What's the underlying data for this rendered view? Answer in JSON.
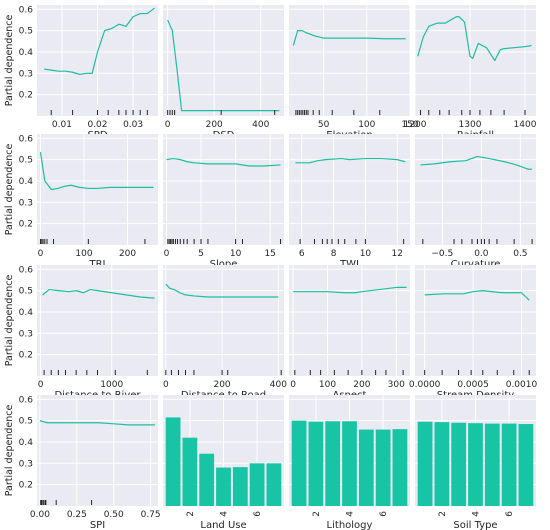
{
  "figure": {
    "ylabel": "Partial dependence",
    "colors": {
      "line": "#1dbfa0",
      "bar": "#17c5a5",
      "panel_bg": "#e9eaf2",
      "grid": "#ffffff",
      "rug": "#222222",
      "text": "#262626"
    }
  },
  "chart_data": [
    {
      "type": "line",
      "xlabel": "SPD",
      "ylabel": "Partial dependence",
      "xlim": [
        0.003,
        0.037
      ],
      "ylim": [
        0.1,
        0.62
      ],
      "xticks": [
        0.01,
        0.02,
        0.03
      ],
      "xtick_labels": [
        "0.01",
        "0.02",
        "0.03"
      ],
      "yticks": [
        0.2,
        0.3,
        0.4,
        0.5,
        0.6
      ],
      "ytick_labels": [
        "0.2",
        "0.3",
        "0.4",
        "0.5",
        "0.6"
      ],
      "x": [
        0.005,
        0.007,
        0.009,
        0.011,
        0.013,
        0.015,
        0.017,
        0.0185,
        0.02,
        0.022,
        0.024,
        0.026,
        0.028,
        0.03,
        0.032,
        0.034,
        0.036
      ],
      "y": [
        0.32,
        0.315,
        0.31,
        0.31,
        0.305,
        0.295,
        0.3,
        0.3,
        0.4,
        0.5,
        0.51,
        0.53,
        0.52,
        0.565,
        0.58,
        0.58,
        0.605
      ],
      "rug": [
        0.007,
        0.013,
        0.02,
        0.023,
        0.026,
        0.028,
        0.03,
        0.032,
        0.034
      ]
    },
    {
      "type": "line",
      "xlabel": "DSD",
      "ylabel": "",
      "xlim": [
        -20,
        500
      ],
      "ylim": [
        0.1,
        0.62
      ],
      "xticks": [
        0,
        200,
        400
      ],
      "xtick_labels": [
        "0",
        "200",
        "400"
      ],
      "yticks": [
        0.2,
        0.3,
        0.4,
        0.5,
        0.6
      ],
      "ytick_labels": [],
      "x": [
        0,
        20,
        40,
        60,
        100,
        200,
        300,
        400,
        480
      ],
      "y": [
        0.55,
        0.5,
        0.32,
        0.125,
        0.125,
        0.125,
        0.125,
        0.125,
        0.125
      ],
      "rug": [
        0,
        10,
        20,
        30,
        230,
        460
      ]
    },
    {
      "type": "line",
      "xlabel": "Elevation",
      "ylabel": "",
      "xlim": [
        10,
        150
      ],
      "ylim": [
        0.1,
        0.62
      ],
      "xticks": [
        50,
        100,
        150
      ],
      "xtick_labels": [
        "50",
        "100",
        "150"
      ],
      "yticks": [
        0.2,
        0.3,
        0.4,
        0.5,
        0.6
      ],
      "ytick_labels": [],
      "x": [
        15,
        20,
        25,
        30,
        40,
        50,
        60,
        80,
        100,
        120,
        145
      ],
      "y": [
        0.43,
        0.5,
        0.5,
        0.49,
        0.475,
        0.465,
        0.465,
        0.465,
        0.465,
        0.462,
        0.462
      ],
      "rug": [
        18,
        20,
        22,
        24,
        26,
        28,
        30,
        32,
        38,
        45,
        60,
        85,
        115
      ]
    },
    {
      "type": "line",
      "xlabel": "Rainfall",
      "ylabel": "",
      "xlim": [
        1200,
        1420
      ],
      "ylim": [
        0.1,
        0.62
      ],
      "xticks": [
        1200,
        1300,
        1400
      ],
      "xtick_labels": [
        "1200",
        "1300",
        "1400"
      ],
      "yticks": [
        0.2,
        0.3,
        0.4,
        0.5,
        0.6
      ],
      "ytick_labels": [],
      "x": [
        1205,
        1215,
        1225,
        1240,
        1255,
        1265,
        1275,
        1280,
        1290,
        1300,
        1305,
        1315,
        1330,
        1345,
        1355,
        1360,
        1380,
        1400,
        1412
      ],
      "y": [
        0.38,
        0.47,
        0.52,
        0.535,
        0.535,
        0.55,
        0.565,
        0.565,
        0.54,
        0.38,
        0.37,
        0.44,
        0.42,
        0.36,
        0.41,
        0.415,
        0.42,
        0.425,
        0.43
      ],
      "rug": [
        1210,
        1225,
        1245,
        1262,
        1285,
        1300,
        1318,
        1338,
        1362,
        1400
      ]
    },
    {
      "type": "line",
      "xlabel": "TRI",
      "ylabel": "Partial dependence",
      "xlim": [
        -8,
        270
      ],
      "ylim": [
        0.1,
        0.62
      ],
      "xticks": [
        0,
        100,
        200
      ],
      "xtick_labels": [
        "0",
        "100",
        "200"
      ],
      "yticks": [
        0.2,
        0.3,
        0.4,
        0.5,
        0.6
      ],
      "ytick_labels": [
        "0.2",
        "0.3",
        "0.4",
        "0.5",
        "0.6"
      ],
      "x": [
        0,
        10,
        25,
        40,
        55,
        70,
        90,
        110,
        130,
        160,
        200,
        260
      ],
      "y": [
        0.535,
        0.4,
        0.36,
        0.365,
        0.375,
        0.38,
        0.37,
        0.365,
        0.365,
        0.37,
        0.37,
        0.37
      ],
      "rug": [
        0,
        3,
        6,
        10,
        15,
        30,
        110,
        240
      ]
    },
    {
      "type": "line",
      "xlabel": "Slope",
      "ylabel": "",
      "xlim": [
        -0.5,
        17
      ],
      "ylim": [
        0.1,
        0.62
      ],
      "xticks": [
        0,
        5,
        10,
        15
      ],
      "xtick_labels": [
        "0",
        "5",
        "10",
        "15"
      ],
      "yticks": [
        0.2,
        0.3,
        0.4,
        0.5,
        0.6
      ],
      "ytick_labels": [],
      "x": [
        0,
        1,
        2,
        3,
        4,
        6,
        8,
        10,
        12,
        14,
        16.5
      ],
      "y": [
        0.5,
        0.505,
        0.5,
        0.49,
        0.485,
        0.48,
        0.48,
        0.48,
        0.47,
        0.47,
        0.475
      ],
      "rug": [
        0.2,
        0.4,
        0.6,
        0.8,
        1,
        1.3,
        1.6,
        2,
        2.5,
        3,
        4,
        5,
        6,
        10,
        11,
        16.5
      ]
    },
    {
      "type": "line",
      "xlabel": "TWI",
      "ylabel": "",
      "xlim": [
        5.2,
        12.8
      ],
      "ylim": [
        0.1,
        0.62
      ],
      "xticks": [
        6,
        8,
        10,
        12
      ],
      "xtick_labels": [
        "6",
        "8",
        "10",
        "12"
      ],
      "yticks": [
        0.2,
        0.3,
        0.4,
        0.5,
        0.6
      ],
      "ytick_labels": [],
      "x": [
        5.6,
        6.5,
        7,
        7.5,
        8.5,
        9,
        10,
        11,
        12,
        12.5
      ],
      "y": [
        0.485,
        0.485,
        0.495,
        0.5,
        0.505,
        0.5,
        0.505,
        0.505,
        0.5,
        0.49
      ],
      "rug": [
        5.9,
        6.8,
        7.3,
        7.6,
        7.9,
        8.3,
        8.7,
        9.4,
        10,
        12.4
      ]
    },
    {
      "type": "line",
      "xlabel": "Curvature",
      "ylabel": "",
      "xlim": [
        -0.85,
        0.7
      ],
      "ylim": [
        0.1,
        0.62
      ],
      "xticks": [
        -0.5,
        0.0,
        0.5
      ],
      "xtick_labels": [
        "−0.5",
        "0.0",
        "0.5"
      ],
      "yticks": [
        0.2,
        0.3,
        0.4,
        0.5,
        0.6
      ],
      "ytick_labels": [],
      "x": [
        -0.78,
        -0.6,
        -0.4,
        -0.2,
        -0.05,
        0.1,
        0.3,
        0.45,
        0.6,
        0.65
      ],
      "y": [
        0.475,
        0.48,
        0.49,
        0.495,
        0.515,
        0.505,
        0.49,
        0.475,
        0.455,
        0.455
      ],
      "rug": [
        -0.75,
        -0.35,
        -0.25,
        -0.12,
        -0.05,
        0.0,
        0.04,
        0.1,
        0.2,
        0.42,
        0.65
      ]
    },
    {
      "type": "line",
      "xlabel": "Distance to River",
      "ylabel": "Partial dependence",
      "xlim": [
        -50,
        1650
      ],
      "ylim": [
        0.1,
        0.62
      ],
      "xticks": [
        0,
        1000
      ],
      "xtick_labels": [
        "0",
        "1000"
      ],
      "yticks": [
        0.2,
        0.3,
        0.4,
        0.5,
        0.6
      ],
      "ytick_labels": [
        "0.2",
        "0.3",
        "0.4",
        "0.5",
        "0.6"
      ],
      "x": [
        30,
        120,
        250,
        400,
        500,
        600,
        700,
        800,
        1000,
        1200,
        1400,
        1600
      ],
      "y": [
        0.48,
        0.505,
        0.5,
        0.495,
        0.5,
        0.49,
        0.505,
        0.5,
        0.49,
        0.48,
        0.47,
        0.465
      ],
      "rug": [
        50,
        150,
        250,
        350,
        500,
        650,
        800,
        1050,
        1500
      ]
    },
    {
      "type": "line",
      "xlabel": "Distance to Road",
      "ylabel": "",
      "xlim": [
        -10,
        420
      ],
      "ylim": [
        0.1,
        0.62
      ],
      "xticks": [
        0,
        200,
        400
      ],
      "xtick_labels": [
        "0",
        "200",
        "400"
      ],
      "yticks": [
        0.2,
        0.3,
        0.4,
        0.5,
        0.6
      ],
      "ytick_labels": [],
      "x": [
        0,
        15,
        30,
        50,
        70,
        100,
        150,
        200,
        300,
        400
      ],
      "y": [
        0.53,
        0.51,
        0.505,
        0.49,
        0.48,
        0.475,
        0.47,
        0.47,
        0.47,
        0.47
      ],
      "rug": [
        0,
        20,
        45,
        70,
        100,
        200,
        220,
        410
      ]
    },
    {
      "type": "line",
      "xlabel": "Aspect",
      "ylabel": "",
      "xlim": [
        -12,
        340
      ],
      "ylim": [
        0.1,
        0.62
      ],
      "xticks": [
        0,
        100,
        200,
        300
      ],
      "xtick_labels": [
        "0",
        "100",
        "200",
        "300"
      ],
      "yticks": [
        0.2,
        0.3,
        0.4,
        0.5,
        0.6
      ],
      "ytick_labels": [],
      "x": [
        0,
        50,
        100,
        150,
        180,
        200,
        250,
        300,
        330
      ],
      "y": [
        0.495,
        0.495,
        0.495,
        0.49,
        0.49,
        0.495,
        0.505,
        0.515,
        0.515
      ],
      "rug": [
        5,
        50,
        80,
        120,
        160,
        200,
        240,
        270,
        320
      ]
    },
    {
      "type": "line",
      "xlabel": "Stream Density",
      "ylabel": "",
      "xlim": [
        -0.0001,
        0.00115
      ],
      "ylim": [
        0.1,
        0.62
      ],
      "xticks": [
        0.0,
        0.0005,
        0.001
      ],
      "xtick_labels": [
        "0.0000",
        "0.0005",
        "0.0010"
      ],
      "yticks": [
        0.2,
        0.3,
        0.4,
        0.5,
        0.6
      ],
      "ytick_labels": [],
      "x": [
        0.0,
        0.0002,
        0.0004,
        0.0005,
        0.0006,
        0.0008,
        0.001,
        0.00108
      ],
      "y": [
        0.48,
        0.485,
        0.485,
        0.495,
        0.5,
        0.49,
        0.49,
        0.455
      ],
      "rug": [
        0.0,
        0.00018,
        0.00035,
        0.00048,
        0.0006,
        0.00075,
        0.00092,
        0.00108
      ]
    },
    {
      "type": "line",
      "xlabel": "SPI",
      "ylabel": "Partial dependence",
      "xlim": [
        -0.02,
        0.8
      ],
      "ylim": [
        0.1,
        0.62
      ],
      "xticks": [
        0.0,
        0.25,
        0.5,
        0.75
      ],
      "xtick_labels": [
        "0.00",
        "0.25",
        "0.50",
        "0.75"
      ],
      "yticks": [
        0.2,
        0.3,
        0.4,
        0.5,
        0.6
      ],
      "ytick_labels": [
        "0.2",
        "0.3",
        "0.4",
        "0.5",
        "0.6"
      ],
      "x": [
        0.0,
        0.05,
        0.1,
        0.2,
        0.3,
        0.4,
        0.5,
        0.6,
        0.7,
        0.78
      ],
      "y": [
        0.5,
        0.49,
        0.49,
        0.49,
        0.49,
        0.49,
        0.485,
        0.48,
        0.48,
        0.48
      ],
      "rug": [
        0.005,
        0.01,
        0.015,
        0.025,
        0.035,
        0.04,
        0.11,
        0.35
      ]
    },
    {
      "type": "bar",
      "xlabel": "Land Use",
      "ylabel": "",
      "xlim": [
        0.4,
        7.6
      ],
      "ylim": [
        0.1,
        0.62
      ],
      "xticks": [
        2,
        4,
        6
      ],
      "xtick_labels": [
        "2",
        "4",
        "6"
      ],
      "yticks": [
        0.2,
        0.3,
        0.4,
        0.5,
        0.6
      ],
      "ytick_labels": [],
      "categories": [
        1,
        2,
        3,
        4,
        5,
        6,
        7
      ],
      "values": [
        0.515,
        0.42,
        0.345,
        0.28,
        0.282,
        0.3,
        0.3
      ]
    },
    {
      "type": "bar",
      "xlabel": "Lithology",
      "ylabel": "",
      "xlim": [
        0.4,
        7.6
      ],
      "ylim": [
        0.1,
        0.62
      ],
      "xticks": [
        2,
        4,
        6
      ],
      "xtick_labels": [
        "2",
        "4",
        "6"
      ],
      "yticks": [
        0.2,
        0.3,
        0.4,
        0.5,
        0.6
      ],
      "ytick_labels": [],
      "categories": [
        1,
        2,
        3,
        4,
        5,
        6,
        7
      ],
      "values": [
        0.5,
        0.495,
        0.497,
        0.497,
        0.458,
        0.458,
        0.46
      ]
    },
    {
      "type": "bar",
      "xlabel": "Soil Type",
      "ylabel": "",
      "xlim": [
        0.4,
        7.6
      ],
      "ylim": [
        0.1,
        0.62
      ],
      "xticks": [
        2,
        4,
        6
      ],
      "xtick_labels": [
        "2",
        "4",
        "6"
      ],
      "yticks": [
        0.2,
        0.3,
        0.4,
        0.5,
        0.6
      ],
      "ytick_labels": [],
      "categories": [
        1,
        2,
        3,
        4,
        5,
        6,
        7
      ],
      "values": [
        0.495,
        0.493,
        0.49,
        0.488,
        0.486,
        0.486,
        0.484
      ]
    }
  ]
}
